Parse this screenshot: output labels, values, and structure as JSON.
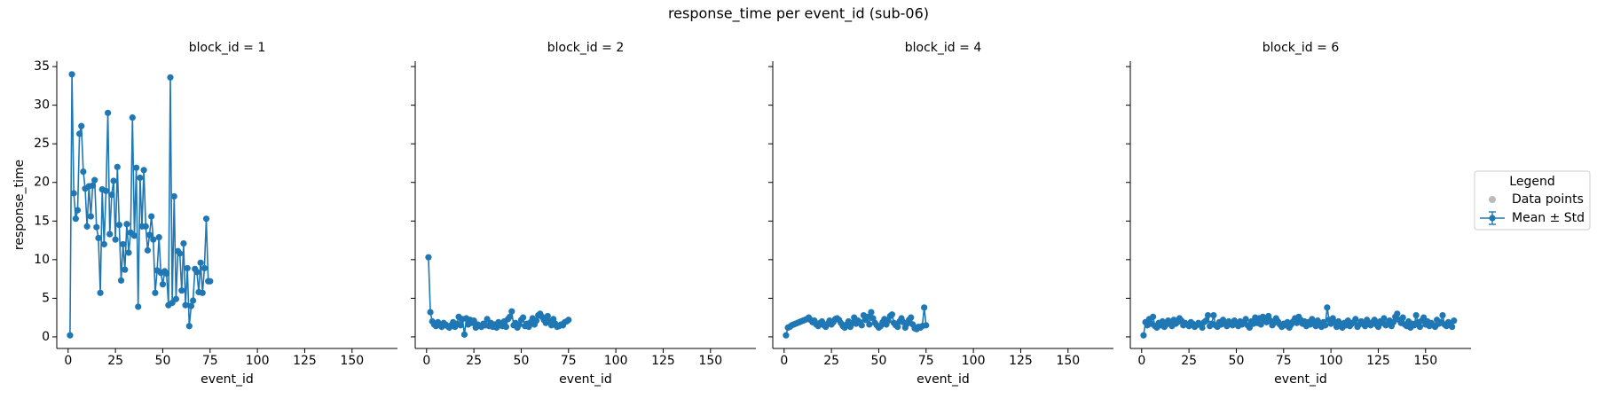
{
  "figure": {
    "title": "response_time per event_id (sub-06)",
    "legend": {
      "title": "Legend",
      "entries": [
        "Data points",
        "Mean ± Std"
      ],
      "colors": [
        "#bbbbbb",
        "#1f77b4"
      ]
    }
  },
  "chart_data": [
    {
      "type": "line",
      "title": "block_id = 1",
      "x_label": "event_id",
      "y_label": "response_time",
      "xlim": [
        -6,
        174
      ],
      "ylim": [
        -1.5,
        35.7
      ],
      "xticks": [
        0,
        25,
        50,
        75,
        100,
        125,
        150
      ],
      "yticks": [
        0,
        5,
        10,
        15,
        20,
        25,
        30,
        35
      ],
      "x": [
        1,
        2,
        3,
        4,
        5,
        6,
        7,
        8,
        9,
        10,
        11,
        12,
        13,
        14,
        15,
        16,
        17,
        18,
        19,
        20,
        21,
        22,
        23,
        24,
        25,
        26,
        27,
        28,
        29,
        30,
        31,
        32,
        33,
        34,
        35,
        36,
        37,
        38,
        39,
        40,
        41,
        42,
        43,
        44,
        45,
        46,
        47,
        48,
        49,
        50,
        51,
        52,
        53,
        54,
        55,
        56,
        57,
        58,
        59,
        60,
        61,
        62,
        63,
        64,
        65,
        66,
        67,
        68,
        69,
        70,
        71,
        72,
        73,
        74,
        75
      ],
      "series": [
        {
          "color": "#1f77b4",
          "values": [
            0.2,
            34,
            18.6,
            15.3,
            16.4,
            26.3,
            27.3,
            21.4,
            19.2,
            14.3,
            19.5,
            15.6,
            19.6,
            20.3,
            14.2,
            12.8,
            5.7,
            19.1,
            12.0,
            18.9,
            29,
            13.3,
            18.4,
            20.2,
            12.6,
            22.0,
            14.5,
            7.3,
            12.0,
            8.7,
            14.6,
            10.9,
            13.5,
            28.4,
            13.1,
            21.9,
            3.9,
            20.6,
            14.3,
            21.6,
            14.3,
            11.2,
            13.2,
            15.6,
            12.6,
            5.7,
            8.6,
            12.9,
            8.3,
            6.8,
            8.5,
            8.2,
            4.1,
            33.6,
            4.4,
            18.2,
            4.9,
            11.1,
            10.8,
            6.0,
            12.1,
            4.1,
            8.9,
            1.4,
            4.0,
            4.7,
            8.8,
            8.4,
            5.8,
            9.6,
            5.7,
            8.9,
            15.3,
            7.2,
            7.2
          ]
        }
      ]
    },
    {
      "type": "line",
      "title": "block_id = 2",
      "x_label": "event_id",
      "xlim": [
        -6,
        174
      ],
      "ylim": [
        -1.5,
        35.7
      ],
      "xticks": [
        0,
        25,
        50,
        75,
        100,
        125,
        150
      ],
      "yticks": [
        0,
        5,
        10,
        15,
        20,
        25,
        30,
        35
      ],
      "x": [
        1,
        2,
        3,
        4,
        5,
        6,
        7,
        8,
        9,
        10,
        11,
        12,
        13,
        14,
        15,
        16,
        17,
        18,
        19,
        20,
        21,
        22,
        23,
        24,
        25,
        26,
        27,
        28,
        29,
        30,
        31,
        32,
        33,
        34,
        35,
        36,
        37,
        38,
        39,
        40,
        41,
        42,
        43,
        44,
        45,
        46,
        47,
        48,
        49,
        50,
        51,
        52,
        53,
        54,
        55,
        56,
        57,
        58,
        59,
        60,
        61,
        62,
        63,
        64,
        65,
        66,
        67,
        68,
        69,
        70,
        71,
        72,
        73,
        74,
        75
      ],
      "series": [
        {
          "color": "#1f77b4",
          "values": [
            10.3,
            3.2,
            2.0,
            1.6,
            1.4,
            1.9,
            1.5,
            1.3,
            1.8,
            1.6,
            1.4,
            1.2,
            1.5,
            1.9,
            1.3,
            1.7,
            2.6,
            1.5,
            2.3,
            0.3,
            2.4,
            1.6,
            2.2,
            1.8,
            2.1,
            1.2,
            1.6,
            1.4,
            1.3,
            1.7,
            1.5,
            2.3,
            1.4,
            1.8,
            1.3,
            1.6,
            1.2,
            1.9,
            1.5,
            1.4,
            2.0,
            1.3,
            2.3,
            2.6,
            3.3,
            1.5,
            1.8,
            1.2,
            1.6,
            2.2,
            2.5,
            1.4,
            1.7,
            1.3,
            1.9,
            2.4,
            1.6,
            2.1,
            2.8,
            3.0,
            2.6,
            2.2,
            1.8,
            2.7,
            2.0,
            1.5,
            2.3,
            1.7,
            1.3,
            1.4,
            1.6,
            1.5,
            1.9,
            2.0,
            2.2
          ]
        }
      ]
    },
    {
      "type": "line",
      "title": "block_id = 4",
      "x_label": "event_id",
      "xlim": [
        -6,
        174
      ],
      "ylim": [
        -1.5,
        35.7
      ],
      "xticks": [
        0,
        25,
        50,
        75,
        100,
        125,
        150
      ],
      "yticks": [
        0,
        5,
        10,
        15,
        20,
        25,
        30,
        35
      ],
      "x": [
        1,
        2,
        3,
        4,
        5,
        6,
        7,
        8,
        9,
        10,
        11,
        12,
        13,
        14,
        15,
        16,
        17,
        18,
        19,
        20,
        21,
        22,
        23,
        24,
        25,
        26,
        27,
        28,
        29,
        30,
        31,
        32,
        33,
        34,
        35,
        36,
        37,
        38,
        39,
        40,
        41,
        42,
        43,
        44,
        45,
        46,
        47,
        48,
        49,
        50,
        51,
        52,
        53,
        54,
        55,
        56,
        57,
        58,
        59,
        60,
        61,
        62,
        63,
        64,
        65,
        66,
        67,
        68,
        69,
        70,
        71,
        72,
        73,
        74,
        75
      ],
      "series": [
        {
          "color": "#1f77b4",
          "values": [
            0.2,
            1.2,
            1.3,
            1.5,
            1.6,
            1.7,
            1.8,
            1.9,
            2.0,
            2.1,
            2.2,
            2.3,
            2.5,
            2.2,
            1.9,
            2.1,
            1.6,
            1.4,
            1.8,
            2.0,
            1.5,
            1.3,
            1.7,
            2.1,
            1.6,
            1.9,
            2.3,
            2.4,
            2.2,
            1.8,
            1.4,
            1.2,
            1.6,
            2.0,
            1.3,
            1.8,
            2.5,
            1.7,
            2.1,
            1.9,
            1.5,
            2.8,
            2.2,
            2.6,
            1.6,
            3.2,
            2.4,
            1.8,
            1.5,
            1.2,
            1.4,
            1.9,
            2.3,
            1.6,
            2.1,
            2.7,
            2.9,
            1.8,
            1.5,
            1.3,
            2.0,
            2.4,
            1.9,
            1.2,
            1.7,
            2.2,
            2.5,
            1.6,
            1.1,
            1.0,
            1.3,
            1.2,
            1.4,
            3.8,
            1.5
          ]
        }
      ]
    },
    {
      "type": "line",
      "title": "block_id = 6",
      "x_label": "event_id",
      "xlim": [
        -6,
        174
      ],
      "ylim": [
        -1.5,
        35.7
      ],
      "xticks": [
        0,
        25,
        50,
        75,
        100,
        125,
        150
      ],
      "yticks": [
        0,
        5,
        10,
        15,
        20,
        25,
        30,
        35
      ],
      "x": [
        1,
        2,
        3,
        4,
        5,
        6,
        7,
        8,
        9,
        10,
        11,
        12,
        13,
        14,
        15,
        16,
        17,
        18,
        19,
        20,
        21,
        22,
        23,
        24,
        25,
        26,
        27,
        28,
        29,
        30,
        31,
        32,
        33,
        34,
        35,
        36,
        37,
        38,
        39,
        40,
        41,
        42,
        43,
        44,
        45,
        46,
        47,
        48,
        49,
        50,
        51,
        52,
        53,
        54,
        55,
        56,
        57,
        58,
        59,
        60,
        61,
        62,
        63,
        64,
        65,
        66,
        67,
        68,
        69,
        70,
        71,
        72,
        73,
        74,
        75,
        76,
        77,
        78,
        79,
        80,
        81,
        82,
        83,
        84,
        85,
        86,
        87,
        88,
        89,
        90,
        91,
        92,
        93,
        94,
        95,
        96,
        97,
        98,
        99,
        100,
        101,
        102,
        103,
        104,
        105,
        106,
        107,
        108,
        109,
        110,
        111,
        112,
        113,
        114,
        115,
        116,
        117,
        118,
        119,
        120,
        121,
        122,
        123,
        124,
        125,
        126,
        127,
        128,
        129,
        130,
        131,
        132,
        133,
        134,
        135,
        136,
        137,
        138,
        139,
        140,
        141,
        142,
        143,
        144,
        145,
        146,
        147,
        148,
        149,
        150,
        151,
        152,
        153,
        154,
        155,
        156,
        157,
        158,
        159,
        160,
        161,
        162,
        163,
        164,
        165
      ],
      "series": [
        {
          "color": "#1f77b4",
          "values": [
            0.2,
            1.9,
            1.5,
            2.3,
            1.7,
            2.6,
            1.4,
            1.2,
            1.8,
            1.5,
            2.0,
            1.3,
            1.6,
            2.1,
            1.8,
            1.4,
            2.2,
            1.7,
            1.9,
            2.4,
            2.1,
            1.5,
            1.8,
            1.6,
            1.4,
            1.9,
            1.7,
            1.3,
            1.5,
            1.8,
            1.6,
            1.2,
            1.9,
            2.1,
            2.8,
            1.4,
            1.7,
            2.8,
            1.5,
            1.3,
            1.9,
            1.6,
            2.2,
            1.8,
            1.4,
            2.0,
            1.7,
            1.5,
            2.1,
            1.8,
            1.4,
            2.0,
            1.6,
            1.9,
            2.3,
            1.5,
            1.2,
            2.0,
            1.7,
            2.5,
            1.8,
            2.4,
            1.6,
            2.6,
            2.2,
            1.9,
            2.7,
            2.1,
            1.5,
            1.8,
            2.4,
            2.0,
            1.6,
            1.3,
            1.7,
            1.5,
            1.9,
            1.2,
            1.6,
            2.0,
            2.4,
            1.8,
            2.6,
            2.2,
            1.7,
            2.0,
            1.4,
            1.9,
            1.6,
            2.3,
            1.8,
            1.4,
            2.1,
            1.6,
            1.3,
            1.9,
            1.5,
            3.8,
            2.2,
            1.7,
            2.4,
            1.9,
            1.3,
            2.0,
            1.6,
            1.2,
            1.8,
            1.5,
            2.1,
            1.4,
            1.7,
            1.9,
            2.3,
            1.3,
            1.6,
            2.0,
            1.8,
            1.4,
            2.2,
            1.7,
            1.5,
            1.9,
            2.2,
            1.6,
            1.3,
            2.0,
            1.8,
            2.4,
            1.5,
            1.7,
            2.1,
            1.4,
            1.9,
            2.6,
            3.0,
            2.2,
            1.8,
            2.5,
            1.6,
            1.4,
            2.0,
            1.2,
            1.7,
            1.5,
            2.8,
            1.9,
            1.3,
            2.1,
            2.5,
            1.6,
            2.0,
            1.4,
            1.8,
            1.5,
            1.3,
            2.2,
            1.7,
            1.9,
            2.8,
            1.6,
            1.4,
            1.9,
            1.5,
            1.3,
            2.1
          ]
        }
      ]
    }
  ]
}
